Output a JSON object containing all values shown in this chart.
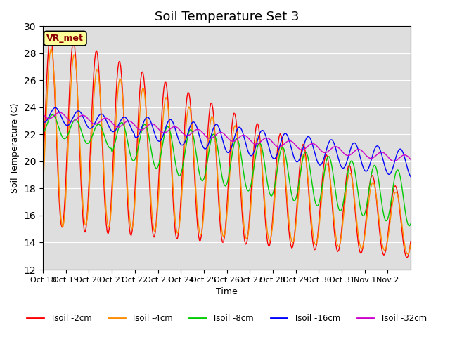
{
  "title": "Soil Temperature Set 3",
  "xlabel": "Time",
  "ylabel": "Soil Temperature (C)",
  "ylim": [
    12,
    30
  ],
  "yticks": [
    12,
    14,
    16,
    18,
    20,
    22,
    24,
    26,
    28,
    30
  ],
  "xtick_labels": [
    "Oct 18",
    "Oct 19",
    "Oct 20",
    "Oct 21",
    "Oct 22",
    "Oct 23",
    "Oct 24",
    "Oct 25",
    "Oct 26",
    "Oct 27",
    "Oct 28",
    "Oct 29",
    "Oct 30",
    "Oct 31",
    "Nov 1",
    "Nov 2"
  ],
  "line_colors": {
    "2cm": "#ff0000",
    "4cm": "#ff8c00",
    "8cm": "#00cc00",
    "16cm": "#0000ff",
    "32cm": "#cc00cc"
  },
  "line_labels": {
    "2cm": "Tsoil -2cm",
    "4cm": "Tsoil -4cm",
    "8cm": "Tsoil -8cm",
    "16cm": "Tsoil -16cm",
    "32cm": "Tsoil -32cm"
  },
  "annotation_text": "VR_met",
  "title_fontsize": 13,
  "axis_label_fontsize": 9,
  "tick_fontsize": 8
}
